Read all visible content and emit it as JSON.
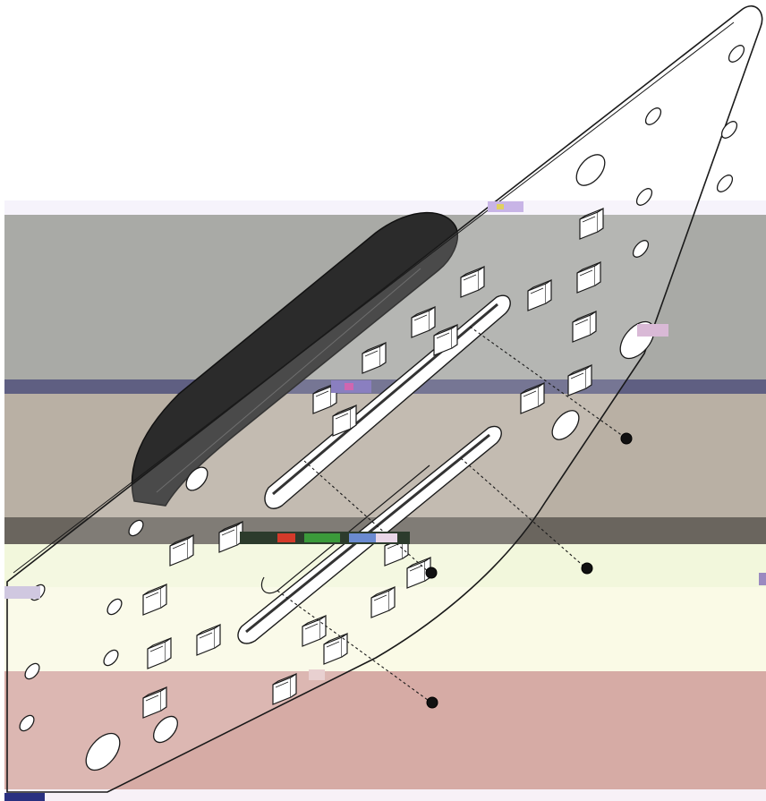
{
  "figure": {
    "description_type": "exploded isometric line drawing",
    "screws_shown": 4,
    "colors": {
      "line": "#1a1a1a",
      "plate": "#ffffff",
      "gasket": "#2b2b2b",
      "screw": "#111111",
      "band_gray": "#a9aaa6",
      "band_blue": "#5f5f82",
      "band_tan": "#b9b0a4",
      "band_dark": "#6a655e",
      "band_yellow": "#f6f7dc",
      "band_cream": "#fafae6",
      "band_pink": "#d6aba5"
    }
  }
}
